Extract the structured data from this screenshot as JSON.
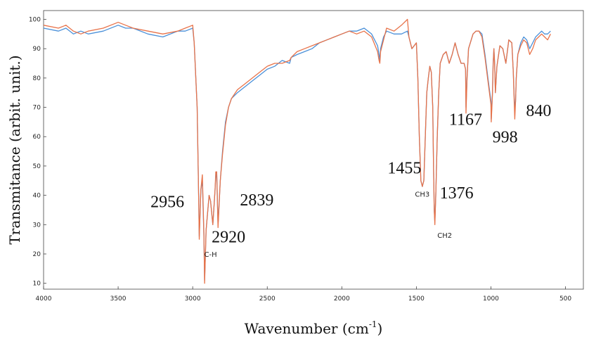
{
  "chart_data": {
    "type": "line",
    "title": "",
    "xlabel": "Wavenumber (cm",
    "xlabel_sup": "-1",
    "xlabel_close": ")",
    "ylabel": "Transmitance (arbit. unit.)",
    "xlim": [
      4000,
      380
    ],
    "ylim": [
      8,
      103
    ],
    "x_ticks": [
      4000,
      3500,
      3000,
      2500,
      2000,
      1500,
      1000,
      500
    ],
    "y_ticks": [
      10,
      20,
      30,
      40,
      50,
      60,
      70,
      80,
      90,
      100
    ],
    "grid": false,
    "legend": "none",
    "series": [
      {
        "color": "#4a90d9",
        "x": [
          4000,
          3900,
          3850,
          3800,
          3750,
          3700,
          3600,
          3500,
          3450,
          3400,
          3300,
          3200,
          3100,
          3050,
          3000,
          2990,
          2970,
          2960,
          2956,
          2945,
          2935,
          2925,
          2920,
          2910,
          2890,
          2880,
          2865,
          2850,
          2845,
          2839,
          2830,
          2815,
          2800,
          2780,
          2760,
          2740,
          2700,
          2650,
          2600,
          2550,
          2500,
          2450,
          2400,
          2350,
          2340,
          2300,
          2250,
          2200,
          2150,
          2100,
          2050,
          2000,
          1950,
          1900,
          1850,
          1800,
          1760,
          1750,
          1745,
          1740,
          1720,
          1700,
          1650,
          1600,
          1560,
          1550,
          1530,
          1500,
          1490,
          1480,
          1470,
          1460,
          1455,
          1450,
          1440,
          1430,
          1420,
          1410,
          1400,
          1390,
          1385,
          1380,
          1376,
          1370,
          1360,
          1350,
          1340,
          1320,
          1300,
          1280,
          1260,
          1240,
          1220,
          1200,
          1180,
          1170,
          1167,
          1160,
          1150,
          1120,
          1100,
          1080,
          1060,
          1040,
          1020,
          1000,
          998,
          990,
          985,
          980,
          975,
          970,
          960,
          940,
          920,
          900,
          880,
          860,
          850,
          845,
          840,
          835,
          830,
          820,
          800,
          780,
          760,
          740,
          720,
          700,
          680,
          660,
          640,
          620,
          600
        ],
        "y": [
          97,
          96,
          97,
          95,
          96,
          95,
          96,
          98,
          97,
          97,
          95,
          94,
          96,
          96,
          97,
          92,
          70,
          40,
          26,
          42,
          45,
          26,
          11,
          28,
          40,
          38,
          30,
          42,
          46,
          48,
          30,
          45,
          55,
          65,
          70,
          73,
          75,
          77,
          79,
          81,
          83,
          84,
          86,
          85,
          87,
          88,
          89,
          90,
          92,
          93,
          94,
          95,
          96,
          96,
          97,
          95,
          91,
          88,
          86,
          90,
          94,
          96,
          95,
          95,
          96,
          94,
          90,
          92,
          80,
          60,
          45,
          43,
          44,
          45,
          60,
          75,
          80,
          84,
          82,
          70,
          50,
          35,
          31,
          40,
          60,
          75,
          85,
          88,
          89,
          85,
          88,
          92,
          88,
          85,
          85,
          83,
          70,
          80,
          90,
          95,
          96,
          96,
          95,
          88,
          80,
          72,
          66,
          75,
          85,
          90,
          85,
          75,
          84,
          91,
          90,
          85,
          93,
          92,
          82,
          75,
          70,
          72,
          80,
          88,
          92,
          94,
          93,
          90,
          92,
          94,
          95,
          96,
          95,
          95,
          96
        ],
        "name": ""
      },
      {
        "color": "#e8734a",
        "x": [
          4000,
          3900,
          3850,
          3800,
          3750,
          3700,
          3600,
          3500,
          3450,
          3400,
          3300,
          3200,
          3100,
          3050,
          3000,
          2990,
          2970,
          2960,
          2956,
          2945,
          2935,
          2925,
          2920,
          2910,
          2890,
          2880,
          2865,
          2850,
          2845,
          2839,
          2830,
          2815,
          2800,
          2780,
          2760,
          2740,
          2700,
          2650,
          2600,
          2550,
          2500,
          2450,
          2400,
          2350,
          2340,
          2300,
          2250,
          2200,
          2150,
          2100,
          2050,
          2000,
          1950,
          1900,
          1850,
          1800,
          1760,
          1750,
          1745,
          1740,
          1720,
          1700,
          1650,
          1600,
          1560,
          1550,
          1530,
          1500,
          1490,
          1480,
          1470,
          1460,
          1455,
          1450,
          1440,
          1430,
          1420,
          1410,
          1400,
          1390,
          1385,
          1380,
          1376,
          1370,
          1360,
          1350,
          1340,
          1320,
          1300,
          1280,
          1260,
          1240,
          1220,
          1200,
          1180,
          1170,
          1167,
          1160,
          1150,
          1120,
          1100,
          1080,
          1060,
          1040,
          1020,
          1000,
          998,
          990,
          985,
          980,
          975,
          970,
          960,
          940,
          920,
          900,
          880,
          860,
          850,
          845,
          840,
          835,
          830,
          820,
          800,
          780,
          760,
          740,
          720,
          700,
          680,
          660,
          640,
          620,
          600
        ],
        "y": [
          98,
          97,
          98,
          96,
          95,
          96,
          97,
          99,
          98,
          97,
          96,
          95,
          96,
          97,
          98,
          92,
          70,
          40,
          25,
          42,
          47,
          27,
          10,
          28,
          40,
          38,
          30,
          42,
          48,
          48,
          29,
          45,
          54,
          64,
          70,
          73,
          76,
          78,
          80,
          82,
          84,
          85,
          85,
          86,
          87,
          89,
          90,
          91,
          92,
          93,
          94,
          95,
          96,
          95,
          96,
          94,
          89,
          86,
          85,
          89,
          93,
          97,
          96,
          98,
          100,
          94,
          90,
          92,
          80,
          60,
          45,
          43,
          44,
          45,
          60,
          75,
          80,
          84,
          82,
          70,
          50,
          35,
          30,
          40,
          60,
          75,
          85,
          88,
          89,
          85,
          88,
          92,
          88,
          85,
          85,
          83,
          68,
          80,
          90,
          95,
          96,
          96,
          94,
          87,
          79,
          71,
          65,
          74,
          84,
          90,
          84,
          75,
          84,
          91,
          90,
          85,
          93,
          92,
          82,
          74,
          66,
          72,
          80,
          88,
          91,
          93,
          92,
          88,
          90,
          93,
          94,
          95,
          94,
          93,
          95
        ],
        "name": ""
      }
    ],
    "annotations": [
      {
        "text": "2956",
        "size": "big",
        "x": 3170,
        "y": 36
      },
      {
        "text": "2839",
        "size": "big",
        "x": 2570,
        "y": 36.5
      },
      {
        "text": "2920",
        "size": "big",
        "x": 2760,
        "y": 24
      },
      {
        "text": "C-H",
        "size": "small",
        "x": 2880,
        "y": 19
      },
      {
        "text": "1455",
        "size": "big",
        "x": 1580,
        "y": 47.5
      },
      {
        "text": "CH3",
        "size": "small",
        "x": 1460,
        "y": 39.5
      },
      {
        "text": "1376",
        "size": "big",
        "x": 1230,
        "y": 39
      },
      {
        "text": "CH2",
        "size": "small",
        "x": 1310,
        "y": 25.5
      },
      {
        "text": "1167",
        "size": "big",
        "x": 1170,
        "y": 64
      },
      {
        "text": "998",
        "size": "big",
        "x": 905,
        "y": 58
      },
      {
        "text": "840",
        "size": "big",
        "x": 680,
        "y": 67
      }
    ]
  }
}
